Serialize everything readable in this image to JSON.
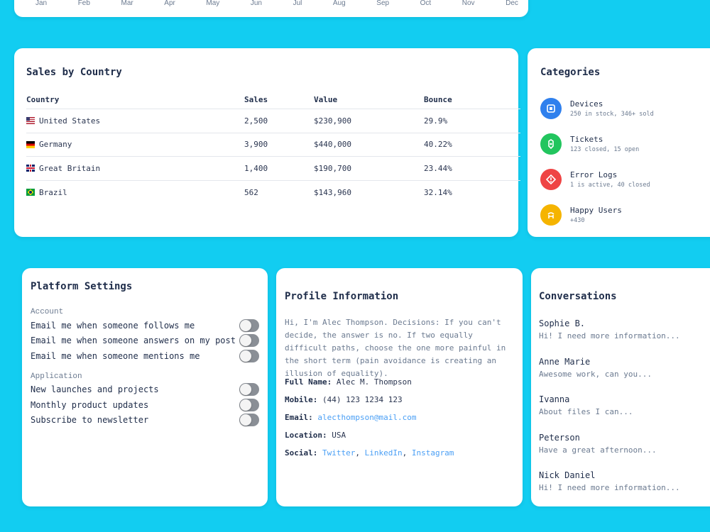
{
  "chart_fragment": {
    "months": [
      "Jan",
      "Feb",
      "Mar",
      "Apr",
      "May",
      "Jun",
      "Jul",
      "Aug",
      "Sep",
      "Oct",
      "Nov",
      "Dec"
    ]
  },
  "sales": {
    "title": "Sales by Country",
    "headers": [
      "Country",
      "Sales",
      "Value",
      "Bounce"
    ],
    "rows": [
      {
        "country": "United States",
        "flag": "us-flag",
        "sales": "2,500",
        "value": "$230,900",
        "bounce": "29.9%"
      },
      {
        "country": "Germany",
        "flag": "de-flag",
        "sales": "3,900",
        "value": "$440,000",
        "bounce": "40.22%"
      },
      {
        "country": "Great Britain",
        "flag": "gb-flag",
        "sales": "1,400",
        "value": "$190,700",
        "bounce": "23.44%"
      },
      {
        "country": "Brazil",
        "flag": "br-flag",
        "sales": "562",
        "value": "$143,960",
        "bounce": "32.14%"
      }
    ]
  },
  "categories": {
    "title": "Categories",
    "items": [
      {
        "name": "Devices",
        "sub": "250 in stock, 346+ sold",
        "icon": "device-icon",
        "color": "#2f80ed"
      },
      {
        "name": "Tickets",
        "sub": "123 closed, 15 open",
        "icon": "ticket-icon",
        "color": "#22c55e"
      },
      {
        "name": "Error Logs",
        "sub": "1 is active, 40 closed",
        "icon": "error-icon",
        "color": "#ef4444"
      },
      {
        "name": "Happy Users",
        "sub": "+430",
        "icon": "happy-users-icon",
        "color": "#f5b400"
      }
    ]
  },
  "settings": {
    "title": "Platform Settings",
    "account_label": "Account",
    "account": [
      "Email me when someone follows me",
      "Email me when someone answers on my post",
      "Email me when someone mentions me"
    ],
    "application_label": "Application",
    "application": [
      "New launches and projects",
      "Monthly product updates",
      "Subscribe to newsletter"
    ]
  },
  "profile": {
    "title": "Profile Information",
    "bio": "Hi, I'm Alec Thompson. Decisions: If you can't decide, the answer is no. If two equally difficult paths, choose the one more painful in the short term (pain avoidance is creating an illusion of equality).",
    "full_name_label": "Full Name:",
    "full_name": "Alec M. Thompson",
    "mobile_label": "Mobile:",
    "mobile": "(44) 123 1234 123",
    "email_label": "Email:",
    "email": "alecthompson@mail.com",
    "location_label": "Location:",
    "location": "USA",
    "social_label": "Social:",
    "social": [
      "Twitter",
      "LinkedIn",
      "Instagram"
    ],
    "link_color": "#4a9ff5"
  },
  "conversations": {
    "title": "Conversations",
    "items": [
      {
        "name": "Sophie B.",
        "msg": "Hi! I need more information..."
      },
      {
        "name": "Anne Marie",
        "msg": "Awesome work, can you..."
      },
      {
        "name": "Ivanna",
        "msg": "About files I can..."
      },
      {
        "name": "Peterson",
        "msg": "Have a great afternoon..."
      },
      {
        "name": "Nick Daniel",
        "msg": "Hi! I need more information..."
      }
    ]
  },
  "theme": {
    "background": "#12cdf1"
  }
}
